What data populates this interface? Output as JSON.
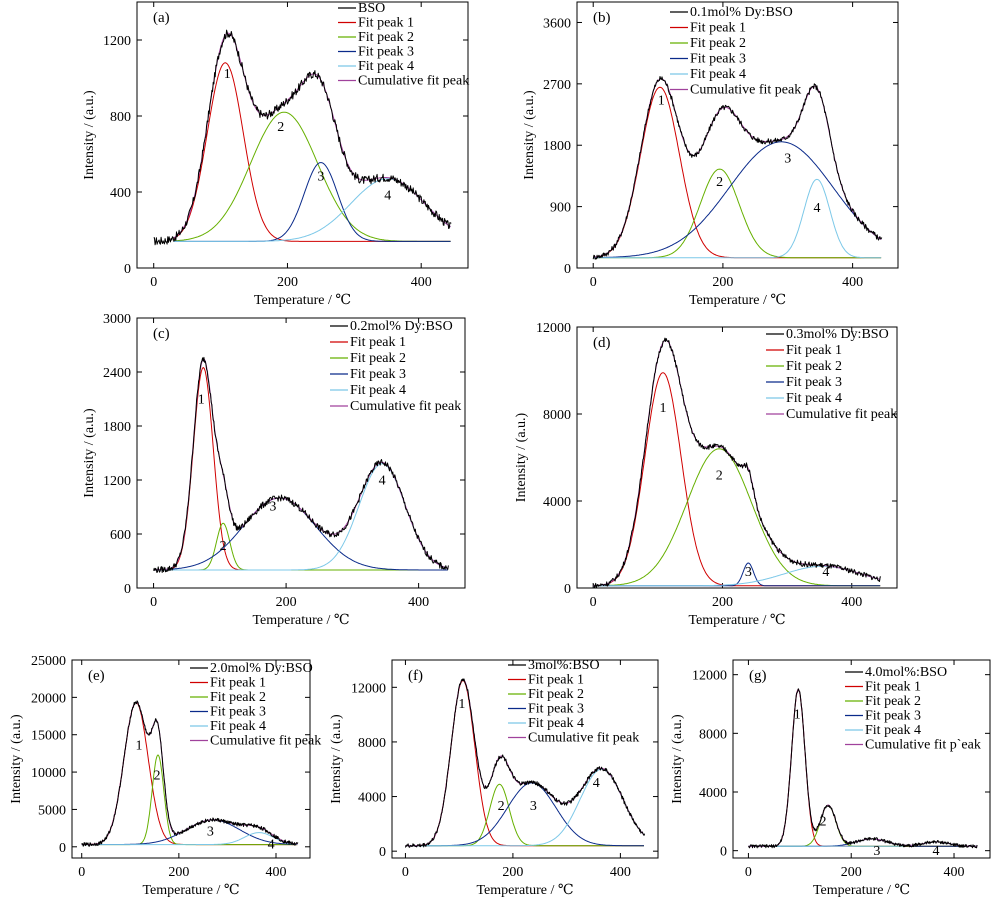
{
  "chart_data": [
    {
      "type": "line",
      "panel_label": "(a)",
      "xlabel": "Temperature / ℃",
      "ylabel": "Intensity / (a.u.)",
      "xlim": [
        -25,
        470
      ],
      "ylim": [
        0,
        1400
      ],
      "xticks": [
        0,
        200,
        400
      ],
      "yticks": [
        0,
        400,
        800,
        1200
      ],
      "legend": {
        "placement": "top-right",
        "entries": [
          "BSO",
          "Fit peak 1",
          "Fit peak 2",
          "Fit peak 3",
          "Fit peak 4",
          "Cumulative fit peak"
        ]
      },
      "baseline": 140,
      "x_range": [
        0,
        445
      ],
      "fit_start": 30,
      "peaks": [
        {
          "label": "1",
          "center": 107,
          "height": 940,
          "width": 27
        },
        {
          "label": "2",
          "center": 195,
          "height": 680,
          "width": 50
        },
        {
          "label": "3",
          "center": 250,
          "height": 415,
          "width": 25
        },
        {
          "label": "4",
          "center": 350,
          "height": 330,
          "width": 55
        }
      ],
      "peak_label_positions": [
        [
          110,
          1000
        ],
        [
          190,
          720
        ],
        [
          250,
          460
        ],
        [
          350,
          360
        ]
      ],
      "noise": 22
    },
    {
      "type": "line",
      "panel_label": "(b)",
      "xlabel": "Temperature / ℃",
      "ylabel": "Intensity / (a.u.)",
      "xlim": [
        -25,
        470
      ],
      "ylim": [
        0,
        3900
      ],
      "xticks": [
        0,
        200,
        400
      ],
      "yticks": [
        0,
        900,
        1800,
        2700,
        3600
      ],
      "legend": {
        "placement": "top-right",
        "entries": [
          "0.1mol% Dy:BSO",
          "Fit peak 1",
          "Fit peak 2",
          "Fit peak 3",
          "Fit peak 4",
          "Cumulative fit peak"
        ]
      },
      "baseline": 150,
      "x_range": [
        0,
        445
      ],
      "fit_start": 0,
      "peaks": [
        {
          "label": "1",
          "center": 103,
          "height": 2500,
          "width": 30
        },
        {
          "label": "2",
          "center": 195,
          "height": 1300,
          "width": 30
        },
        {
          "label": "3",
          "center": 290,
          "height": 1700,
          "width": 80
        },
        {
          "label": "4",
          "center": 345,
          "height": 1150,
          "width": 20
        }
      ],
      "peak_label_positions": [
        [
          105,
          2400
        ],
        [
          195,
          1200
        ],
        [
          300,
          1550
        ],
        [
          345,
          820
        ]
      ],
      "noise": 40
    },
    {
      "type": "line",
      "panel_label": "(c)",
      "xlabel": "Temperature / ℃",
      "ylabel": "Intensity / (a.u.)",
      "xlim": [
        -25,
        470
      ],
      "ylim": [
        0,
        3000
      ],
      "xticks": [
        0,
        200,
        400
      ],
      "yticks": [
        0,
        600,
        1200,
        1800,
        2400,
        3000
      ],
      "legend": {
        "placement": "top-right",
        "entries": [
          "0.2mol% Dy:BSO",
          "Fit peak 1",
          "Fit peak 2",
          "Fit peak 3",
          "Fit peak 4",
          "Cumulative fit peak"
        ]
      },
      "baseline": 200,
      "x_range": [
        0,
        445
      ],
      "fit_start": 0,
      "peaks": [
        {
          "label": "1",
          "center": 75,
          "height": 2250,
          "width": 15
        },
        {
          "label": "2",
          "center": 105,
          "height": 520,
          "width": 10
        },
        {
          "label": "3",
          "center": 190,
          "height": 800,
          "width": 55
        },
        {
          "label": "4",
          "center": 345,
          "height": 1180,
          "width": 35
        }
      ],
      "peak_label_positions": [
        [
          72,
          2050
        ],
        [
          105,
          420
        ],
        [
          180,
          860
        ],
        [
          345,
          1150
        ]
      ],
      "noise": 35
    },
    {
      "type": "line",
      "panel_label": "(d)",
      "xlabel": "Temperature / ℃",
      "ylabel": "Intensity / (a.u.)",
      "xlim": [
        -25,
        470
      ],
      "ylim": [
        0,
        12000
      ],
      "xticks": [
        0,
        200,
        400
      ],
      "yticks": [
        0,
        4000,
        8000,
        12000
      ],
      "legend": {
        "placement": "top-right",
        "entries": [
          "0.3mol% Dy:BSO",
          "Fit peak 1",
          "Fit peak 2",
          "Fit peak 3",
          "Fit peak 4",
          "Cumulative fit peak"
        ]
      },
      "baseline": 100,
      "x_range": [
        0,
        445
      ],
      "fit_start": 0,
      "peaks": [
        {
          "label": "1",
          "center": 108,
          "height": 9800,
          "width": 28
        },
        {
          "label": "2",
          "center": 195,
          "height": 6300,
          "width": 50
        },
        {
          "label": "3",
          "center": 240,
          "height": 1050,
          "width": 8
        },
        {
          "label": "4",
          "center": 355,
          "height": 900,
          "width": 60
        }
      ],
      "peak_label_positions": [
        [
          108,
          8100
        ],
        [
          195,
          5000
        ],
        [
          240,
          550
        ],
        [
          360,
          550
        ]
      ],
      "noise": 120
    },
    {
      "type": "line",
      "panel_label": "(e)",
      "xlabel": "Temperature / ℃",
      "ylabel": "Intensity / (a.u.)",
      "xlim": [
        -20,
        470
      ],
      "ylim": [
        -1500,
        25000
      ],
      "xticks": [
        0,
        200,
        400
      ],
      "yticks": [
        0,
        5000,
        10000,
        15000,
        20000,
        25000
      ],
      "legend": {
        "placement": "top-right",
        "entries": [
          "2.0mol% Dy:BSO",
          "Fit peak 1",
          "Fit peak 2",
          "Fit peak 3",
          "Fit peak 4",
          "Cumulative fit peak"
        ]
      },
      "baseline": 300,
      "x_range": [
        0,
        445
      ],
      "fit_start": 0,
      "peaks": [
        {
          "label": "1",
          "center": 112,
          "height": 19000,
          "width": 25
        },
        {
          "label": "2",
          "center": 157,
          "height": 12000,
          "width": 12
        },
        {
          "label": "3",
          "center": 270,
          "height": 3300,
          "width": 55
        },
        {
          "label": "4",
          "center": 365,
          "height": 1600,
          "width": 30
        }
      ],
      "peak_label_positions": [
        [
          118,
          13000
        ],
        [
          155,
          9000
        ],
        [
          265,
          1500
        ],
        [
          390,
          -200
        ]
      ],
      "noise": 250
    },
    {
      "type": "line",
      "panel_label": "(f)",
      "xlabel": "Temperature / ℃",
      "ylabel": "Intensity / (a.u.)",
      "xlim": [
        -25,
        470
      ],
      "ylim": [
        -500,
        14000
      ],
      "xticks": [
        0,
        200,
        400
      ],
      "yticks": [
        0,
        4000,
        8000,
        12000
      ],
      "legend": {
        "placement": "top-right",
        "entries": [
          "3mol%:BSO",
          "Fit peak 1",
          "Fit peak 2",
          "Fit peak 3",
          "Fit peak 4",
          "Cumulative fit peak"
        ]
      },
      "baseline": 400,
      "x_range": [
        0,
        445
      ],
      "fit_start": 0,
      "peaks": [
        {
          "label": "1",
          "center": 107,
          "height": 12100,
          "width": 22
        },
        {
          "label": "2",
          "center": 175,
          "height": 4500,
          "width": 18
        },
        {
          "label": "3",
          "center": 235,
          "height": 4600,
          "width": 45
        },
        {
          "label": "4",
          "center": 365,
          "height": 5600,
          "width": 40
        }
      ],
      "peak_label_positions": [
        [
          105,
          10500
        ],
        [
          178,
          3000
        ],
        [
          238,
          3000
        ],
        [
          355,
          4700
        ]
      ],
      "noise": 150
    },
    {
      "type": "line",
      "panel_label": "(g)",
      "xlabel": "Temperature / ℃",
      "ylabel": "Intensity / (a.u.)",
      "xlim": [
        -30,
        470
      ],
      "ylim": [
        -500,
        13000
      ],
      "xticks": [
        0,
        200,
        400
      ],
      "yticks": [
        0,
        4000,
        8000,
        12000
      ],
      "legend": {
        "placement": "top-right",
        "entries": [
          "4.0mol%:BSO",
          "Fit peak 1",
          "Fit peak 2",
          "Fit peak 3",
          "Fit peak 4",
          "Cumulative fit p`eak"
        ]
      },
      "baseline": 300,
      "x_range": [
        0,
        445
      ],
      "fit_start": 0,
      "peaks": [
        {
          "label": "1",
          "center": 97,
          "height": 10700,
          "width": 13
        },
        {
          "label": "2",
          "center": 155,
          "height": 2800,
          "width": 15
        },
        {
          "label": "3",
          "center": 240,
          "height": 500,
          "width": 30
        },
        {
          "label": "4",
          "center": 365,
          "height": 300,
          "width": 25
        }
      ],
      "peak_label_positions": [
        [
          95,
          9000
        ],
        [
          145,
          1700
        ],
        [
          250,
          -300
        ],
        [
          365,
          -300
        ]
      ],
      "noise": 110
    }
  ],
  "styles": {
    "colors": {
      "data": "#000000",
      "fit_peak_1": "#d00000",
      "fit_peak_2": "#66b000",
      "fit_peak_3": "#0a2a8a",
      "fit_peak_4": "#7cc8e8",
      "cumulative": "#a0429c"
    }
  }
}
